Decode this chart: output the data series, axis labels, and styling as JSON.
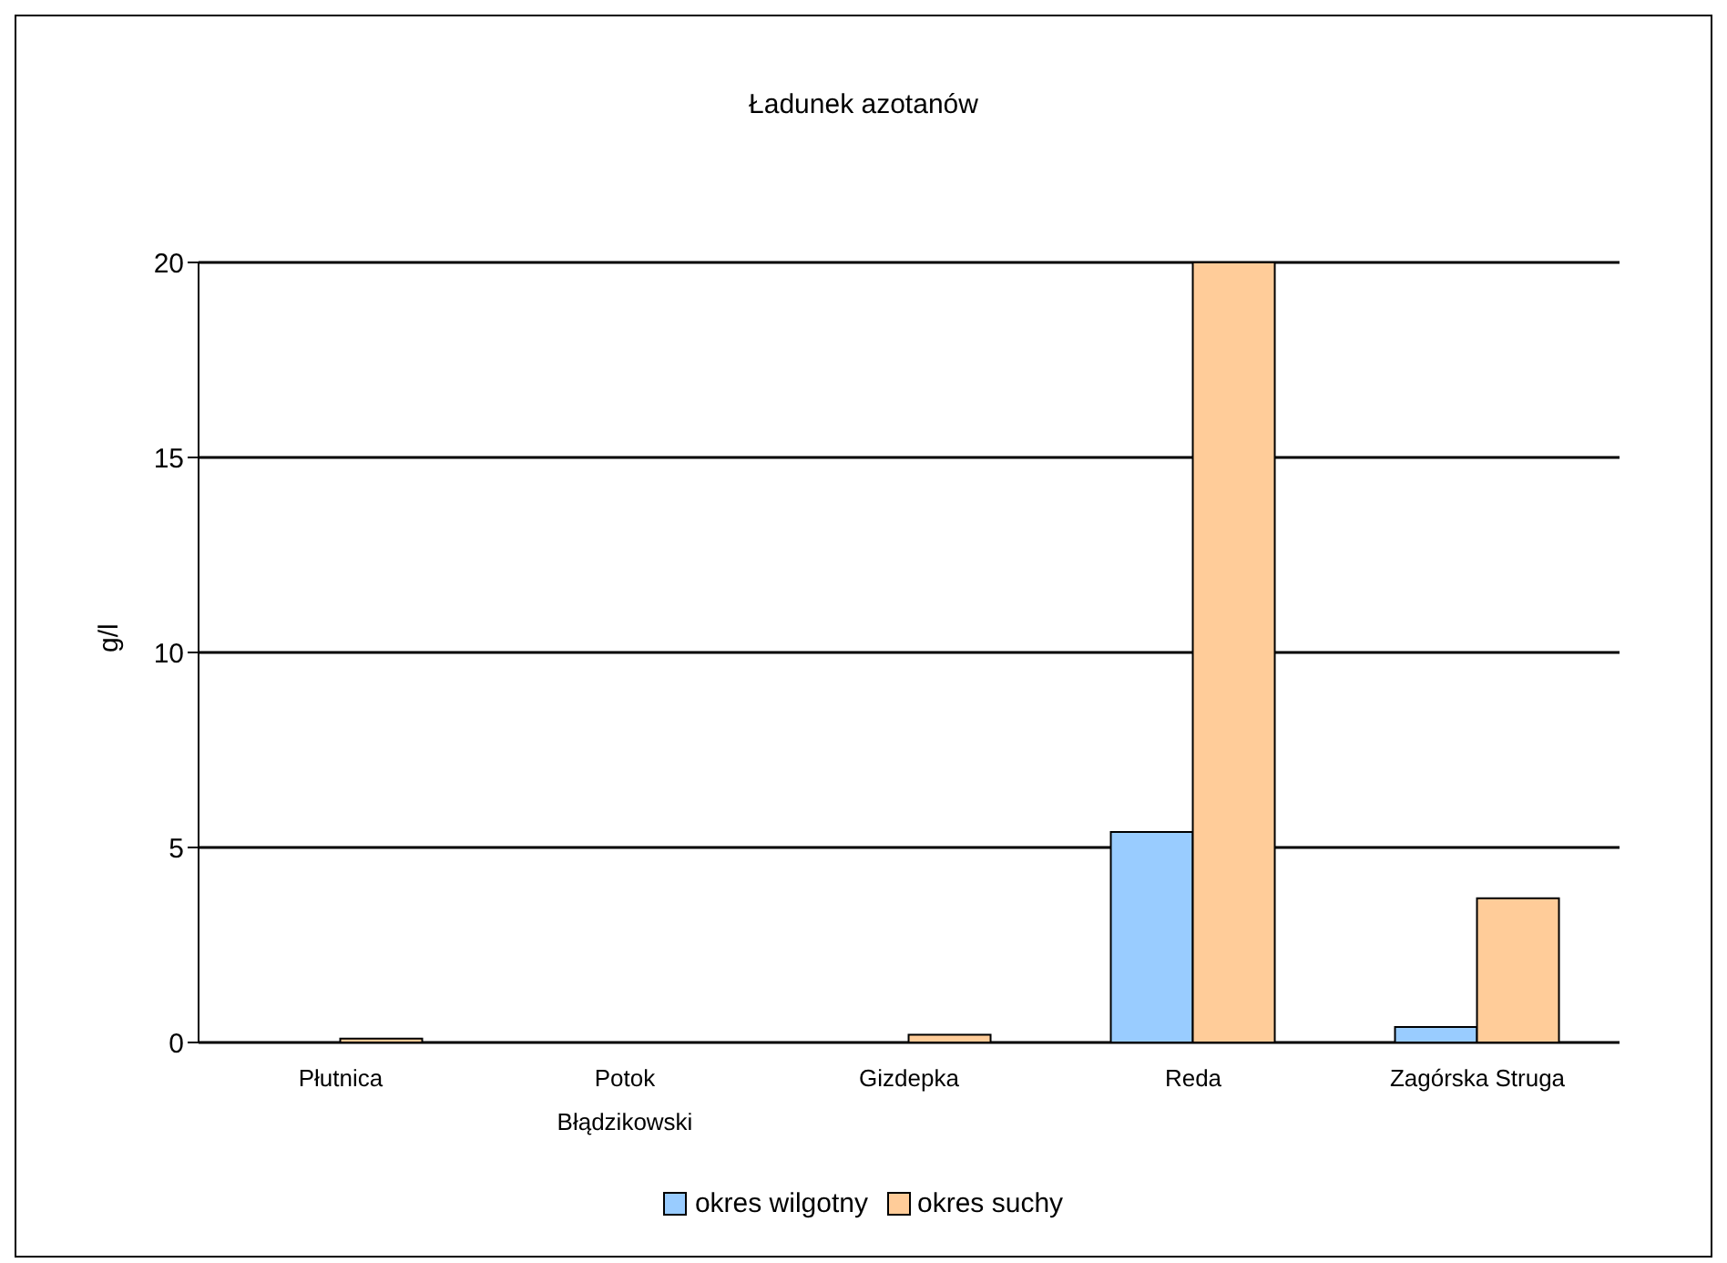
{
  "chart_data": {
    "type": "bar",
    "title": "Ładunek azotanów",
    "ylabel": "g/l",
    "categories": [
      "Płutnica",
      "Potok Błądzikowski",
      "Gizdepka",
      "Reda",
      "Zagórska Struga"
    ],
    "series": [
      {
        "name": "okres wilgotny",
        "color": "#99ccff",
        "values": [
          0,
          0,
          0,
          5.4,
          0.4
        ]
      },
      {
        "name": "okres suchy",
        "color": "#ffcc99",
        "values": [
          0.1,
          0,
          0.2,
          20,
          3.7
        ]
      }
    ],
    "ylim": [
      0,
      20
    ],
    "yticks": [
      0,
      5,
      10,
      15,
      20
    ],
    "grid": "y",
    "legend": "bottom"
  }
}
